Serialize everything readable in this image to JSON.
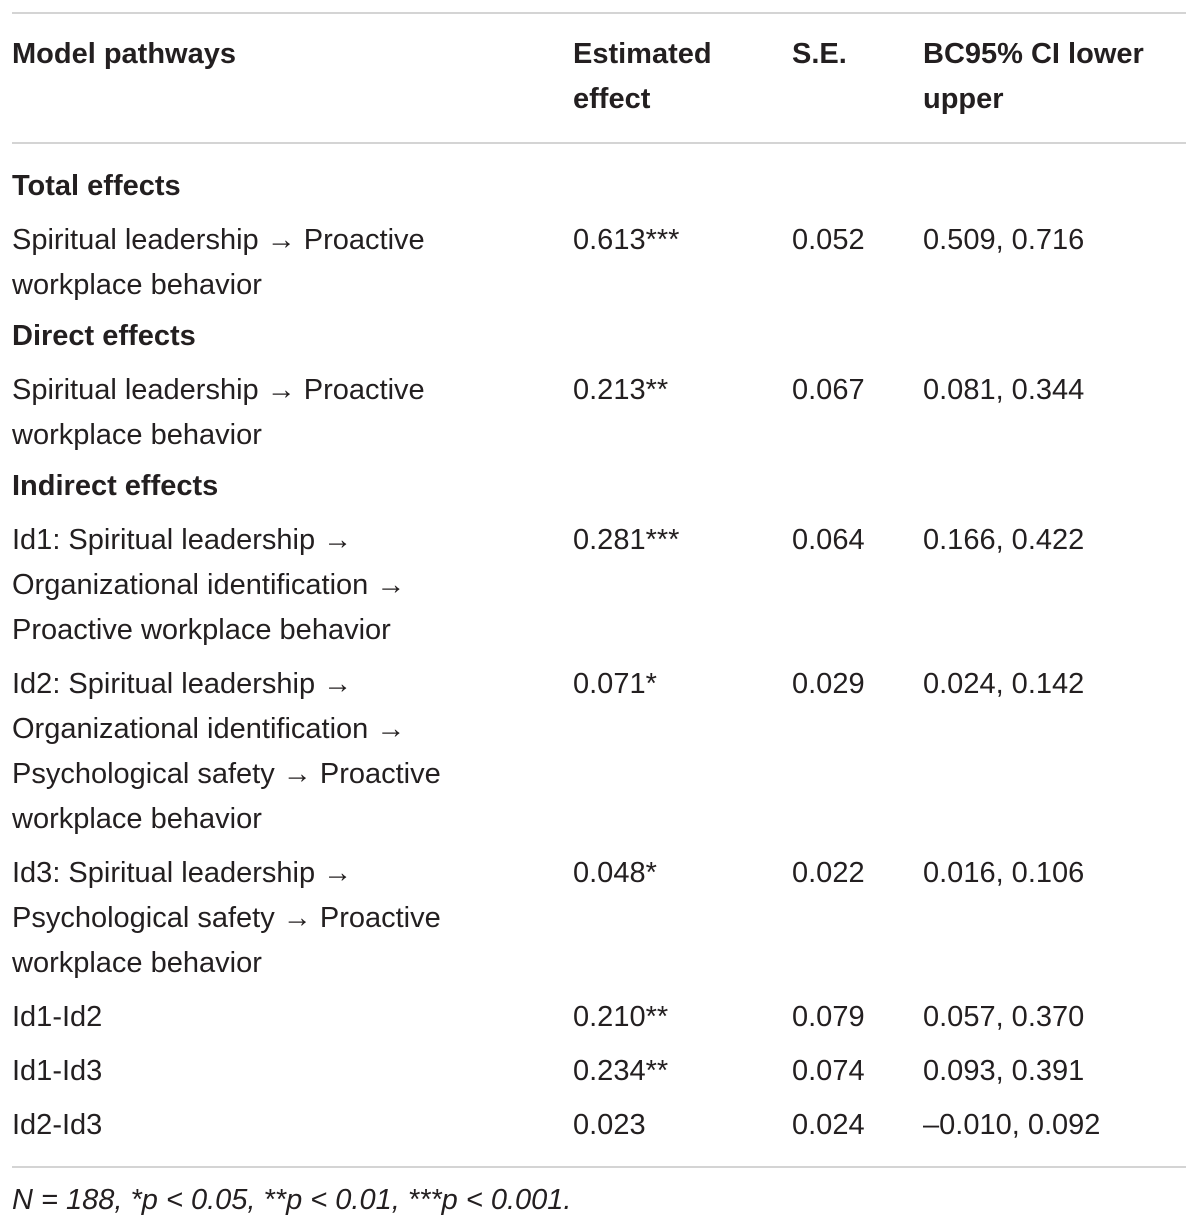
{
  "header": {
    "col1": "Model pathways",
    "col2": "Estimated effect",
    "col3": "S.E.",
    "col4": "BC95% CI lower upper"
  },
  "sections": [
    {
      "title": "Total effects",
      "rows": [
        {
          "pathway": "Spiritual leadership → Proactive workplace behavior",
          "effect": "0.613***",
          "se": "0.052",
          "ci": "0.509, 0.716"
        }
      ]
    },
    {
      "title": "Direct effects",
      "rows": [
        {
          "pathway": "Spiritual leadership → Proactive workplace behavior",
          "effect": "0.213**",
          "se": "0.067",
          "ci": "0.081, 0.344"
        }
      ]
    },
    {
      "title": "Indirect effects",
      "rows": [
        {
          "pathway": "Id1: Spiritual leadership → Organizational identification → Proactive workplace behavior",
          "effect": "0.281***",
          "se": "0.064",
          "ci": "0.166, 0.422"
        },
        {
          "pathway": "Id2: Spiritual leadership → Organizational identification → Psychological safety → Proactive workplace behavior",
          "effect": "0.071*",
          "se": "0.029",
          "ci": "0.024, 0.142"
        },
        {
          "pathway": "Id3: Spiritual leadership → Psychological safety → Proactive workplace behavior",
          "effect": "0.048*",
          "se": "0.022",
          "ci": "0.016, 0.106"
        },
        {
          "pathway": "Id1-Id2",
          "effect": "0.210**",
          "se": "0.079",
          "ci": "0.057, 0.370"
        },
        {
          "pathway": "Id1-Id3",
          "effect": "0.234**",
          "se": "0.074",
          "ci": "0.093, 0.391"
        },
        {
          "pathway": "Id2-Id3",
          "effect": "0.023",
          "se": "0.024",
          "ci": "–0.010, 0.092"
        }
      ]
    }
  ],
  "footnote": "N = 188, *p < 0.05, **p < 0.01, ***p < 0.001."
}
